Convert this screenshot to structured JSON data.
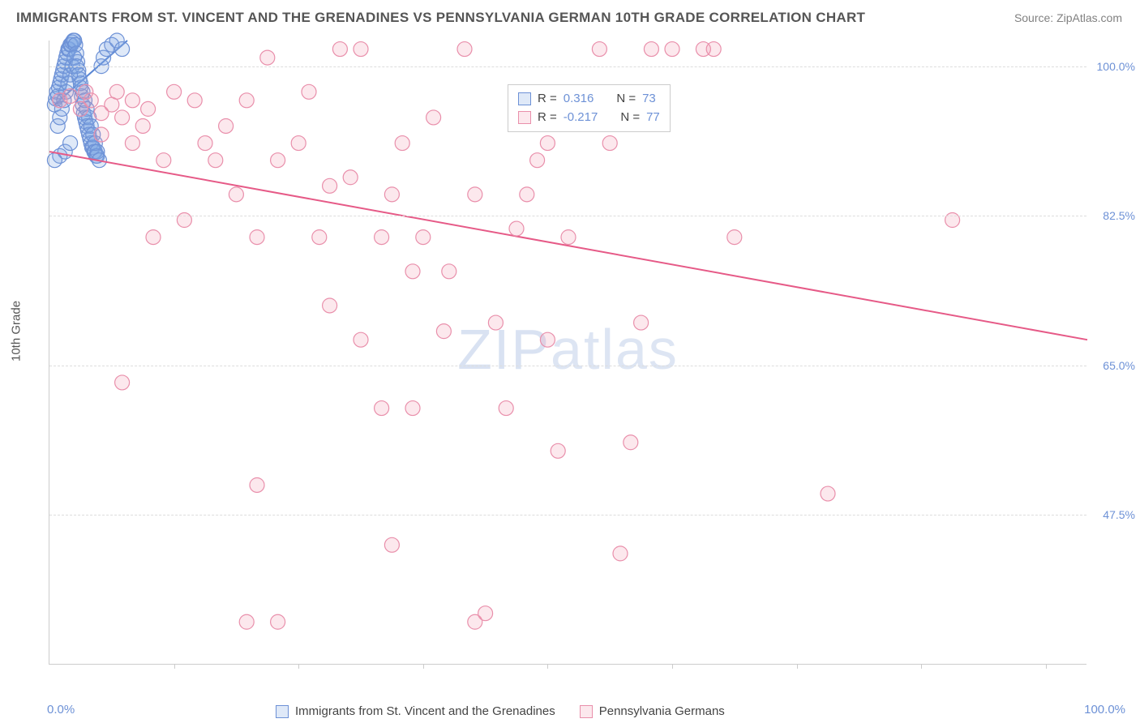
{
  "title": "IMMIGRANTS FROM ST. VINCENT AND THE GRENADINES VS PENNSYLVANIA GERMAN 10TH GRADE CORRELATION CHART",
  "source": "Source: ZipAtlas.com",
  "watermark": "ZIPatlas",
  "y_axis_title": "10th Grade",
  "plot": {
    "type": "scatter",
    "xlim": [
      0,
      100
    ],
    "ylim": [
      30,
      103
    ],
    "x_min_label": "0.0%",
    "x_max_label": "100.0%",
    "y_ticks": [
      47.5,
      65.0,
      82.5,
      100.0
    ],
    "y_tick_labels": [
      "47.5%",
      "65.0%",
      "82.5%",
      "100.0%"
    ],
    "x_tick_positions": [
      12,
      24,
      36,
      48,
      60,
      72,
      84,
      96
    ],
    "background_color": "#ffffff",
    "grid_color": "#dddddd",
    "axis_color": "#cccccc",
    "tick_label_color": "#6d91d6",
    "marker_radius": 9,
    "marker_stroke_width": 1.2,
    "line_width": 2,
    "series": [
      {
        "name": "Immigrants from St. Vincent and the Grenadines",
        "fill_color": "rgba(126,169,228,0.25)",
        "stroke_color": "#6d91d6",
        "trend_color": "#5986d4",
        "R": 0.316,
        "N": 73,
        "trend": {
          "x1": 0.5,
          "y1": 95.5,
          "x2": 7.5,
          "y2": 103
        },
        "points": [
          [
            0.5,
            95.5
          ],
          [
            0.6,
            96.2
          ],
          [
            0.7,
            97.0
          ],
          [
            0.8,
            96.5
          ],
          [
            0.9,
            97.5
          ],
          [
            1.0,
            98.0
          ],
          [
            1.1,
            98.5
          ],
          [
            1.2,
            99.0
          ],
          [
            1.3,
            99.5
          ],
          [
            1.4,
            100.0
          ],
          [
            1.5,
            100.5
          ],
          [
            1.6,
            101.0
          ],
          [
            1.7,
            101.5
          ],
          [
            1.8,
            102.0
          ],
          [
            1.9,
            102.0
          ],
          [
            2.0,
            102.5
          ],
          [
            2.1,
            102.5
          ],
          [
            2.2,
            102.8
          ],
          [
            2.3,
            103.0
          ],
          [
            2.4,
            103.0
          ],
          [
            2.5,
            102.5
          ],
          [
            2.6,
            101.5
          ],
          [
            2.7,
            100.5
          ],
          [
            2.8,
            99.5
          ],
          [
            2.9,
            98.5
          ],
          [
            3.0,
            97.5
          ],
          [
            3.1,
            96.5
          ],
          [
            3.2,
            95.5
          ],
          [
            3.3,
            94.5
          ],
          [
            3.4,
            94.0
          ],
          [
            3.5,
            93.5
          ],
          [
            3.6,
            93.0
          ],
          [
            3.7,
            92.5
          ],
          [
            3.8,
            92.0
          ],
          [
            3.9,
            91.5
          ],
          [
            4.0,
            91.0
          ],
          [
            4.1,
            90.5
          ],
          [
            4.2,
            90.5
          ],
          [
            4.3,
            90.0
          ],
          [
            4.4,
            90.0
          ],
          [
            4.5,
            89.5
          ],
          [
            4.6,
            89.5
          ],
          [
            0.8,
            93.0
          ],
          [
            1.0,
            94.0
          ],
          [
            1.2,
            95.0
          ],
          [
            1.4,
            96.0
          ],
          [
            1.6,
            97.0
          ],
          [
            1.8,
            98.0
          ],
          [
            2.0,
            99.0
          ],
          [
            2.2,
            100.0
          ],
          [
            2.4,
            101.0
          ],
          [
            2.6,
            100.0
          ],
          [
            2.8,
            99.0
          ],
          [
            3.0,
            98.0
          ],
          [
            3.2,
            97.0
          ],
          [
            3.4,
            96.0
          ],
          [
            3.6,
            95.0
          ],
          [
            3.8,
            94.0
          ],
          [
            4.0,
            93.0
          ],
          [
            4.2,
            92.0
          ],
          [
            4.4,
            91.0
          ],
          [
            4.6,
            90.0
          ],
          [
            4.8,
            89.0
          ],
          [
            5.0,
            100.0
          ],
          [
            5.2,
            101.0
          ],
          [
            5.5,
            102.0
          ],
          [
            6.0,
            102.5
          ],
          [
            6.5,
            103.0
          ],
          [
            7.0,
            102.0
          ],
          [
            1.0,
            89.5
          ],
          [
            1.5,
            90.0
          ],
          [
            2.0,
            91.0
          ],
          [
            0.5,
            89.0
          ]
        ]
      },
      {
        "name": "Pennsylvania Germans",
        "fill_color": "rgba(240,150,175,0.22)",
        "stroke_color": "#e98fab",
        "trend_color": "#e65a87",
        "R": -0.217,
        "N": 77,
        "trend": {
          "x1": 0,
          "y1": 90.0,
          "x2": 100,
          "y2": 68.0
        },
        "points": [
          [
            1.0,
            96.0
          ],
          [
            2.0,
            96.5
          ],
          [
            3.0,
            95.0
          ],
          [
            4.0,
            96.0
          ],
          [
            5.0,
            94.5
          ],
          [
            6.0,
            95.5
          ],
          [
            7.0,
            94.0
          ],
          [
            8.0,
            96.0
          ],
          [
            9.0,
            93.0
          ],
          [
            3.5,
            97.0
          ],
          [
            5.0,
            92.0
          ],
          [
            6.5,
            97.0
          ],
          [
            8.0,
            91.0
          ],
          [
            9.5,
            95.0
          ],
          [
            11.0,
            89.0
          ],
          [
            12.0,
            97.0
          ],
          [
            14.0,
            96.0
          ],
          [
            15.0,
            91.0
          ],
          [
            16.0,
            89.0
          ],
          [
            17.0,
            93.0
          ],
          [
            19.0,
            96.0
          ],
          [
            21.0,
            101.0
          ],
          [
            22.0,
            89.0
          ],
          [
            24.0,
            91.0
          ],
          [
            25.0,
            97.0
          ],
          [
            26.0,
            80.0
          ],
          [
            27.0,
            86.0
          ],
          [
            28.0,
            102.0
          ],
          [
            29.0,
            87.0
          ],
          [
            30.0,
            102.0
          ],
          [
            32.0,
            80.0
          ],
          [
            33.0,
            85.0
          ],
          [
            34.0,
            91.0
          ],
          [
            35.0,
            76.0
          ],
          [
            36.0,
            80.0
          ],
          [
            37.0,
            94.0
          ],
          [
            38.0,
            69.0
          ],
          [
            38.5,
            76.0
          ],
          [
            40.0,
            102.0
          ],
          [
            41.0,
            85.0
          ],
          [
            33.0,
            44.0
          ],
          [
            35.0,
            60.0
          ],
          [
            19.0,
            35.0
          ],
          [
            20.0,
            51.0
          ],
          [
            43.0,
            70.0
          ],
          [
            44.0,
            60.0
          ],
          [
            45.0,
            81.0
          ],
          [
            46.0,
            85.0
          ],
          [
            47.0,
            89.0
          ],
          [
            48.0,
            68.0
          ],
          [
            49.0,
            55.0
          ],
          [
            50.0,
            80.0
          ],
          [
            41.0,
            35.0
          ],
          [
            42.0,
            36.0
          ],
          [
            53.0,
            102.0
          ],
          [
            54.0,
            91.0
          ],
          [
            55.0,
            43.0
          ],
          [
            56.0,
            56.0
          ],
          [
            57.0,
            70.0
          ],
          [
            58.0,
            102.0
          ],
          [
            60.0,
            102.0
          ],
          [
            63.0,
            102.0
          ],
          [
            64.0,
            102.0
          ],
          [
            66.0,
            80.0
          ],
          [
            87.0,
            82.0
          ],
          [
            75.0,
            50.0
          ],
          [
            7.0,
            63.0
          ],
          [
            22.0,
            35.0
          ],
          [
            27.0,
            72.0
          ],
          [
            30.0,
            68.0
          ],
          [
            32.0,
            60.0
          ],
          [
            13.0,
            82.0
          ],
          [
            10.0,
            80.0
          ],
          [
            18.0,
            85.0
          ],
          [
            20.0,
            80.0
          ],
          [
            52.0,
            94.0
          ],
          [
            48.0,
            91.0
          ]
        ]
      }
    ]
  },
  "legend_top": {
    "rows": [
      {
        "swatch_fill": "rgba(126,169,228,0.25)",
        "swatch_stroke": "#6d91d6",
        "R_label": "R =",
        "R_value": "0.316",
        "N_label": "N =",
        "N_value": "73"
      },
      {
        "swatch_fill": "rgba(240,150,175,0.22)",
        "swatch_stroke": "#e98fab",
        "R_label": "R =",
        "R_value": "-0.217",
        "N_label": "N =",
        "N_value": "77"
      }
    ]
  },
  "legend_bottom": [
    {
      "swatch_fill": "rgba(126,169,228,0.25)",
      "swatch_stroke": "#6d91d6",
      "label": "Immigrants from St. Vincent and the Grenadines"
    },
    {
      "swatch_fill": "rgba(240,150,175,0.22)",
      "swatch_stroke": "#e98fab",
      "label": "Pennsylvania Germans"
    }
  ]
}
